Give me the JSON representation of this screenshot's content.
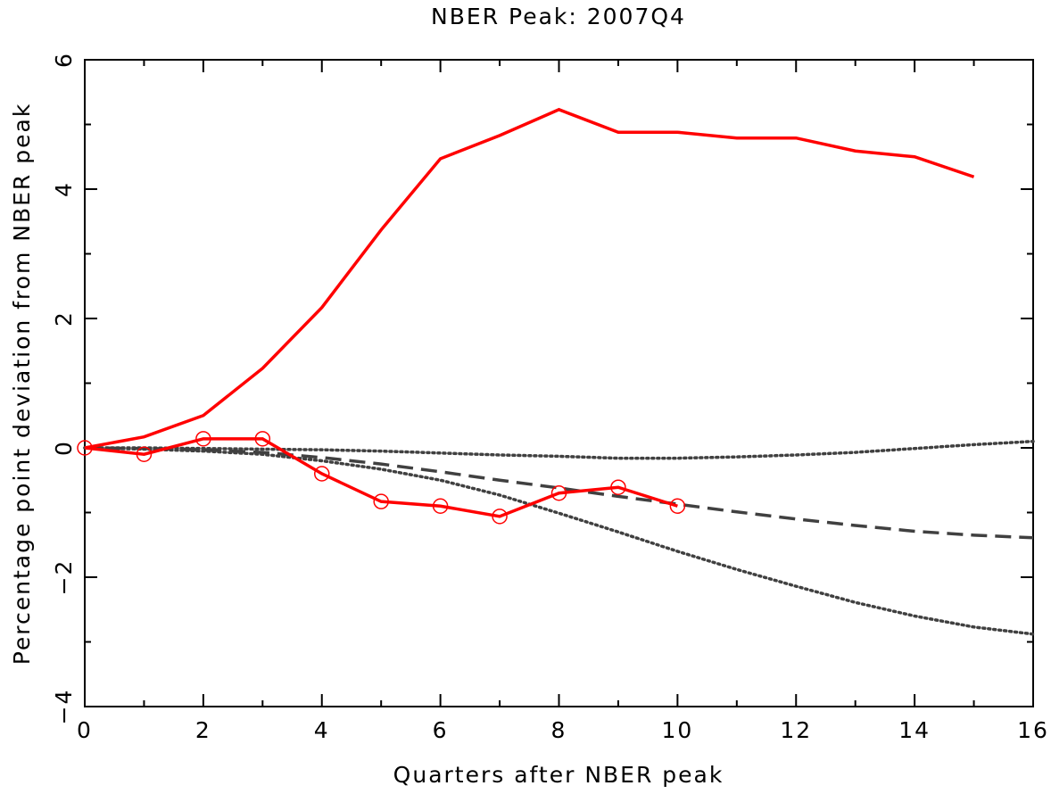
{
  "chart_data": {
    "type": "line",
    "title": "NBER Peak: 2007Q4",
    "x_label": "Quarters after NBER peak",
    "y_label": "Percentage point deviation from NBER peak",
    "xlim": [
      0,
      16
    ],
    "ylim": [
      -4,
      6
    ],
    "xticks": [
      0,
      2,
      4,
      6,
      8,
      10,
      12,
      14,
      16
    ],
    "yticks": [
      {
        "value": -4,
        "label": "−4"
      },
      {
        "value": -2,
        "label": "−2"
      },
      0,
      2,
      4,
      6
    ],
    "x_minor_ticks": [
      1,
      3,
      5,
      7,
      9,
      11,
      13,
      15
    ],
    "y_minor_ticks": [
      -3,
      -1,
      1,
      3,
      5
    ],
    "series": [
      {
        "color": "#ff0000",
        "linestyle": "solid",
        "x": [
          0,
          1,
          2,
          3,
          4,
          5,
          6,
          7,
          8,
          9,
          10,
          11,
          12,
          13,
          14,
          15
        ],
        "values": [
          0,
          0.17,
          0.5,
          1.23,
          2.17,
          3.37,
          4.47,
          4.83,
          5.23,
          4.88,
          4.88,
          4.79,
          4.79,
          4.59,
          4.5,
          4.19
        ]
      },
      {
        "color": "#ff0000",
        "linestyle": "solid",
        "marker": "circle",
        "x": [
          0,
          1,
          2,
          3,
          4,
          5,
          6,
          7,
          8,
          9,
          10
        ],
        "values": [
          0,
          -0.1,
          0.14,
          0.14,
          -0.4,
          -0.83,
          -0.9,
          -1.06,
          -0.7,
          -0.61,
          -0.9
        ]
      },
      {
        "color": "#404040",
        "linestyle": "dashed",
        "x": [
          0,
          1,
          2,
          3,
          4,
          5,
          6,
          7,
          8,
          9,
          10,
          11,
          12,
          13,
          14,
          15,
          16
        ],
        "values": [
          0,
          -0.01,
          -0.03,
          -0.07,
          -0.15,
          -0.25,
          -0.37,
          -0.5,
          -0.62,
          -0.75,
          -0.87,
          -0.99,
          -1.1,
          -1.2,
          -1.29,
          -1.35,
          -1.39
        ]
      },
      {
        "color": "#404040",
        "linestyle": "dotted",
        "x": [
          0,
          1,
          2,
          3,
          4,
          5,
          6,
          7,
          8,
          9,
          10,
          11,
          12,
          13,
          14,
          15,
          16
        ],
        "values": [
          0,
          0,
          -0.01,
          -0.02,
          -0.03,
          -0.05,
          -0.08,
          -0.11,
          -0.13,
          -0.16,
          -0.16,
          -0.14,
          -0.11,
          -0.07,
          -0.01,
          0.05,
          0.1
        ]
      },
      {
        "color": "#404040",
        "linestyle": "dotted",
        "x": [
          0,
          1,
          2,
          3,
          4,
          5,
          6,
          7,
          8,
          9,
          10,
          11,
          12,
          13,
          14,
          15,
          16
        ],
        "values": [
          0,
          -0.02,
          -0.05,
          -0.1,
          -0.2,
          -0.33,
          -0.5,
          -0.73,
          -1.01,
          -1.3,
          -1.6,
          -1.88,
          -2.14,
          -2.39,
          -2.6,
          -2.77,
          -2.88
        ]
      }
    ]
  }
}
